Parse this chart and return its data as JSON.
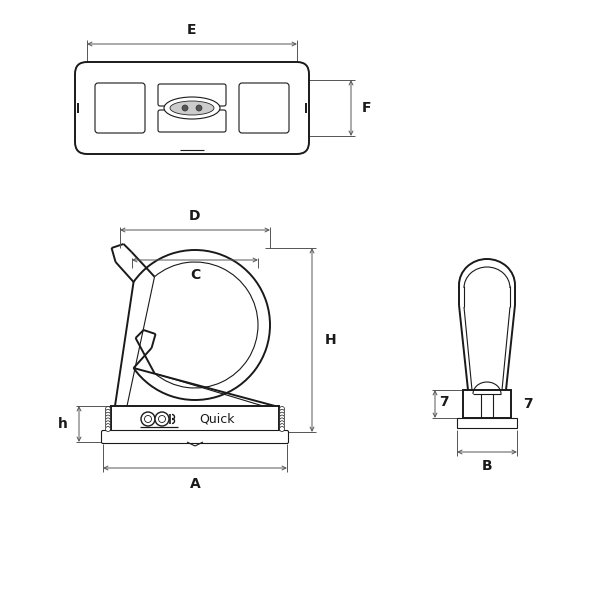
{
  "bg_color": "#ffffff",
  "lc": "#1a1a1a",
  "dc": "#555555",
  "tlw": 0.8,
  "klw": 1.4,
  "dlw": 0.7,
  "fs": 10,
  "labels": {
    "E": "E",
    "F": "F",
    "D": "D",
    "C": "C",
    "H": "H",
    "h": "h",
    "A": "A",
    "B": "B",
    "7": "7"
  },
  "figsize": [
    5.89,
    6.0
  ],
  "dpi": 100
}
